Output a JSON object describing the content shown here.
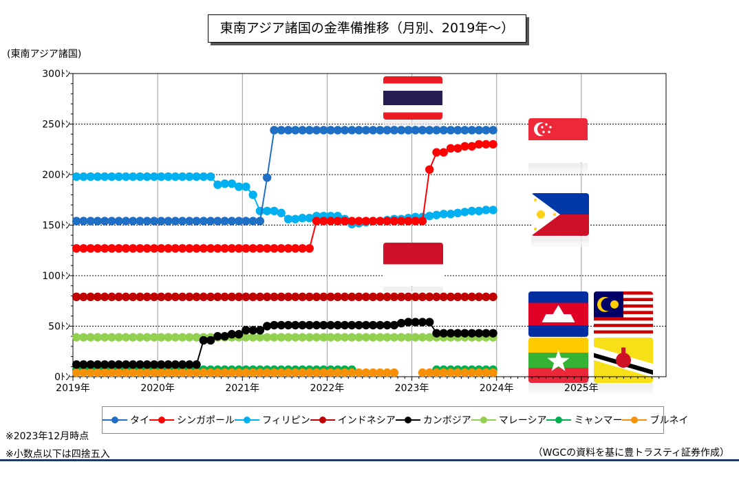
{
  "title": "東南アジア諸国の金準備推移（月別、2019年～）",
  "unit_label": "(東南アジア諸国)",
  "notes": [
    "※2023年12月時点",
    "※小数点以下は四捨五入"
  ],
  "source": "（WGCの資料を基に豊トラスティ証券作成）",
  "chart_data": {
    "type": "line",
    "title": "東南アジア諸国の金準備推移（月別、2019年～）",
    "ylabel": "(東南アジア諸国)",
    "xlabel": "",
    "x_tick_labels": [
      "2019年",
      "2020年",
      "2021年",
      "2022年",
      "2023年",
      "2024年",
      "2025年"
    ],
    "y_tick_labels": [
      "0ﾄﾝ",
      "50ﾄﾝ",
      "100ﾄﾝ",
      "150ﾄﾝ",
      "200ﾄﾝ",
      "250ﾄﾝ",
      "300ﾄﾝ"
    ],
    "xlim": [
      "2019-01",
      "2025-12"
    ],
    "ylim": [
      0,
      300
    ],
    "grid": true,
    "legend_position": "bottom",
    "months": [
      "2019-01",
      "2019-02",
      "2019-03",
      "2019-04",
      "2019-05",
      "2019-06",
      "2019-07",
      "2019-08",
      "2019-09",
      "2019-10",
      "2019-11",
      "2019-12",
      "2020-01",
      "2020-02",
      "2020-03",
      "2020-04",
      "2020-05",
      "2020-06",
      "2020-07",
      "2020-08",
      "2020-09",
      "2020-10",
      "2020-11",
      "2020-12",
      "2021-01",
      "2021-02",
      "2021-03",
      "2021-04",
      "2021-05",
      "2021-06",
      "2021-07",
      "2021-08",
      "2021-09",
      "2021-10",
      "2021-11",
      "2021-12",
      "2022-01",
      "2022-02",
      "2022-03",
      "2022-04",
      "2022-05",
      "2022-06",
      "2022-07",
      "2022-08",
      "2022-09",
      "2022-10",
      "2022-11",
      "2022-12",
      "2023-01",
      "2023-02",
      "2023-03",
      "2023-04",
      "2023-05",
      "2023-06",
      "2023-07",
      "2023-08",
      "2023-09",
      "2023-10",
      "2023-11",
      "2023-12"
    ],
    "series": [
      {
        "name": "タイ",
        "color": "#1f6fc5",
        "values": [
          154,
          154,
          154,
          154,
          154,
          154,
          154,
          154,
          154,
          154,
          154,
          154,
          154,
          154,
          154,
          154,
          154,
          154,
          154,
          154,
          154,
          154,
          154,
          154,
          154,
          154,
          154,
          197,
          244,
          244,
          244,
          244,
          244,
          244,
          244,
          244,
          244,
          244,
          244,
          244,
          244,
          244,
          244,
          244,
          244,
          244,
          244,
          244,
          244,
          244,
          244,
          244,
          244,
          244,
          244,
          244,
          244,
          244,
          244,
          244
        ]
      },
      {
        "name": "シンガポール",
        "color": "#ff0000",
        "values": [
          127,
          127,
          127,
          127,
          127,
          127,
          127,
          127,
          127,
          127,
          127,
          127,
          127,
          127,
          127,
          127,
          127,
          127,
          127,
          127,
          127,
          127,
          127,
          127,
          127,
          127,
          127,
          127,
          127,
          127,
          127,
          127,
          127,
          127,
          154,
          154,
          154,
          154,
          154,
          154,
          154,
          154,
          154,
          154,
          154,
          154,
          154,
          154,
          154,
          154,
          205,
          222,
          222,
          226,
          226,
          228,
          228,
          230,
          230,
          230
        ]
      },
      {
        "name": "フィリピン",
        "color": "#00b0f0",
        "values": [
          198,
          198,
          198,
          198,
          198,
          198,
          198,
          198,
          198,
          198,
          198,
          198,
          198,
          198,
          198,
          198,
          198,
          198,
          198,
          198,
          190,
          191,
          191,
          188,
          188,
          180,
          164,
          164,
          164,
          162,
          156,
          156,
          157,
          157,
          159,
          159,
          159,
          159,
          156,
          151,
          152,
          153,
          154,
          154,
          155,
          156,
          156,
          157,
          158,
          158,
          159,
          160,
          161,
          161,
          162,
          163,
          164,
          164,
          165,
          165
        ]
      },
      {
        "name": "インドネシア",
        "color": "#c00000",
        "values": [
          79,
          79,
          79,
          79,
          79,
          79,
          79,
          79,
          79,
          79,
          79,
          79,
          79,
          79,
          79,
          79,
          79,
          79,
          79,
          79,
          79,
          79,
          79,
          79,
          79,
          79,
          79,
          79,
          79,
          79,
          79,
          79,
          79,
          79,
          79,
          79,
          79,
          79,
          79,
          79,
          79,
          79,
          79,
          79,
          79,
          79,
          79,
          79,
          79,
          79,
          79,
          79,
          79,
          79,
          79,
          79,
          79,
          79,
          79,
          79
        ]
      },
      {
        "name": "カンボジア",
        "color": "#000000",
        "values": [
          12,
          12,
          12,
          12,
          12,
          12,
          12,
          12,
          12,
          12,
          12,
          12,
          12,
          12,
          12,
          12,
          12,
          12,
          36,
          36,
          40,
          40,
          42,
          42,
          46,
          46,
          46,
          50,
          51,
          51,
          51,
          51,
          51,
          51,
          51,
          51,
          51,
          51,
          51,
          51,
          51,
          51,
          51,
          51,
          51,
          51,
          53,
          54,
          54,
          54,
          54,
          43,
          43,
          43,
          43,
          43,
          43,
          43,
          43,
          43
        ]
      },
      {
        "name": "マレーシア",
        "color": "#92d050",
        "values": [
          39,
          39,
          39,
          39,
          39,
          39,
          39,
          39,
          39,
          39,
          39,
          39,
          39,
          39,
          39,
          39,
          39,
          39,
          39,
          39,
          39,
          39,
          39,
          39,
          39,
          39,
          39,
          39,
          39,
          39,
          39,
          39,
          39,
          39,
          39,
          39,
          39,
          39,
          39,
          39,
          39,
          39,
          39,
          39,
          39,
          39,
          39,
          39,
          39,
          39,
          39,
          39,
          39,
          39,
          39,
          39,
          39,
          39,
          39,
          39
        ]
      },
      {
        "name": "ミャンマー",
        "color": "#00b050",
        "values": [
          7,
          7,
          7,
          7,
          7,
          7,
          7,
          7,
          7,
          7,
          7,
          7,
          7,
          7,
          7,
          7,
          7,
          7,
          7,
          7,
          7,
          7,
          7,
          7,
          7,
          7,
          7,
          7,
          7,
          7,
          7,
          7,
          7,
          7,
          7,
          7,
          7,
          7,
          7,
          7,
          null,
          null,
          null,
          null,
          null,
          null,
          null,
          null,
          null,
          null,
          null,
          7,
          7,
          7,
          7,
          7,
          7,
          7,
          7,
          7
        ]
      },
      {
        "name": "ブルネイ",
        "color": "#f79009",
        "values": [
          4,
          4,
          4,
          4,
          4,
          4,
          4,
          4,
          4,
          4,
          4,
          4,
          4,
          4,
          4,
          4,
          4,
          4,
          4,
          4,
          4,
          4,
          4,
          4,
          4,
          4,
          4,
          4,
          4,
          4,
          4,
          4,
          4,
          4,
          4,
          4,
          4,
          4,
          4,
          4,
          4,
          4,
          4,
          4,
          4,
          4,
          null,
          null,
          null,
          4,
          4,
          4,
          4,
          4,
          4,
          4,
          4,
          4,
          4,
          4
        ]
      }
    ]
  },
  "flags": [
    {
      "name": "thailand-flag"
    },
    {
      "name": "singapore-flag"
    },
    {
      "name": "philippines-flag"
    },
    {
      "name": "indonesia-flag"
    },
    {
      "name": "cambodia-flag"
    },
    {
      "name": "malaysia-flag"
    },
    {
      "name": "myanmar-flag"
    },
    {
      "name": "brunei-flag"
    }
  ]
}
